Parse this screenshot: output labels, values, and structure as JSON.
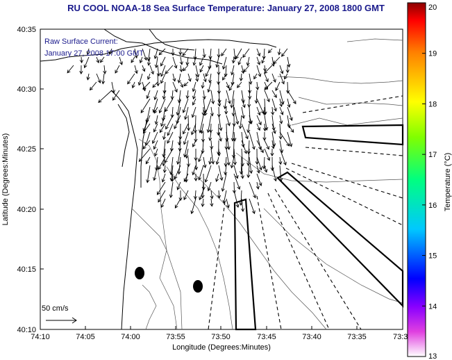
{
  "title": "RU COOL  NOAA-18  Sea Surface Temperature:  January 27, 2008 1800 GMT",
  "current_label": {
    "line1": "Raw Surface Current:",
    "line2": "January 27, 2008 17:00 GMT"
  },
  "scale_label": "50 cm/s",
  "axes": {
    "xlabel": "Longitude (Degrees:Minutes)",
    "ylabel": "Latitude (Degrees:Minutes)",
    "x_ticks": [
      "74:10",
      "74:05",
      "74:00",
      "73:55",
      "73:50",
      "73:45",
      "73:40",
      "73:35",
      "73:3"
    ],
    "y_ticks": [
      "40:35",
      "40:30",
      "40:25",
      "40:20",
      "40:15",
      "40:10"
    ]
  },
  "colorbar": {
    "label": "Temperature (°C)",
    "ticks": [
      "20",
      "19",
      "18",
      "17",
      "16",
      "15",
      "14",
      "13"
    ],
    "min": 13,
    "max": 20
  },
  "colors": {
    "title": "#1a1a8c",
    "land": "#ffffff",
    "sea": "#ffffff"
  }
}
